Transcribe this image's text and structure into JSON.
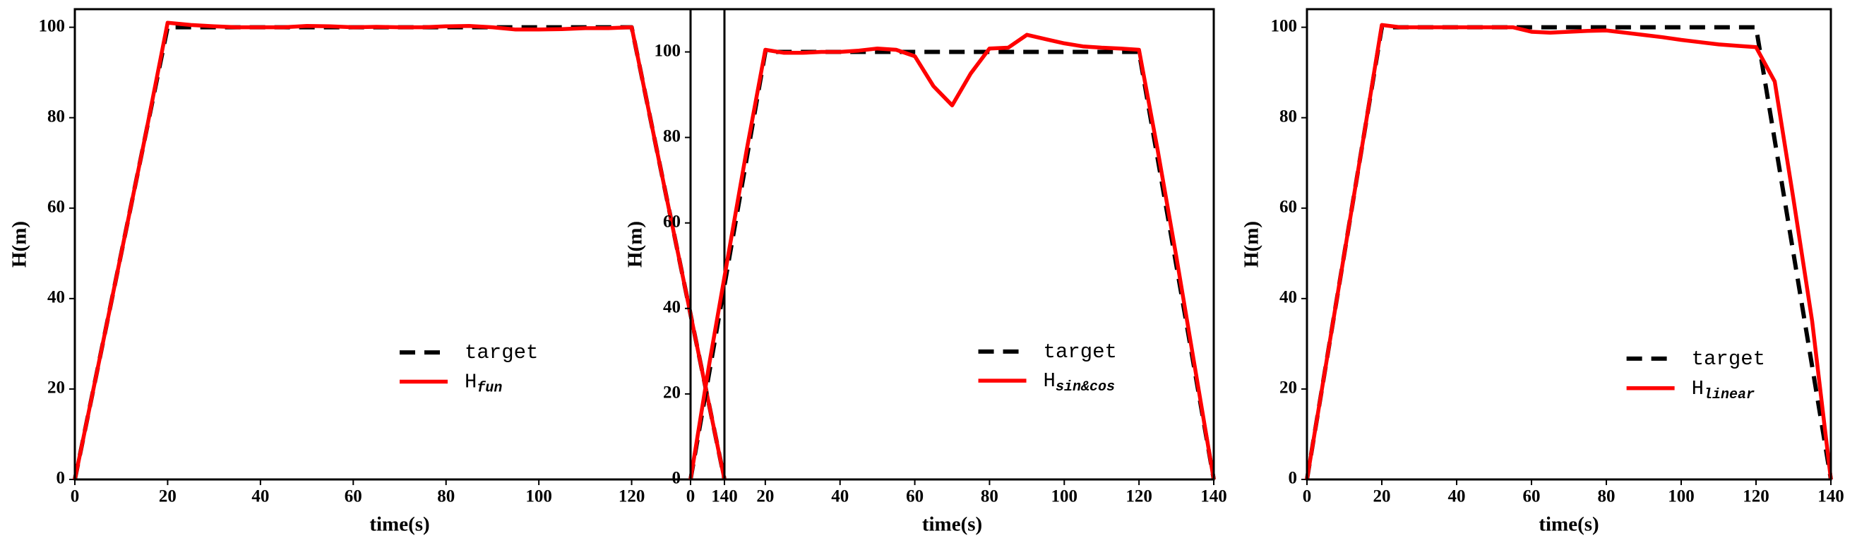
{
  "chart_data": [
    {
      "type": "line",
      "xlabel": "time(s)",
      "ylabel": "H(m)",
      "x": [
        0,
        5,
        10,
        15,
        20,
        25,
        30,
        35,
        40,
        45,
        50,
        55,
        60,
        65,
        70,
        75,
        80,
        85,
        90,
        95,
        100,
        105,
        110,
        115,
        120,
        125,
        130,
        135,
        140
      ],
      "series": [
        {
          "name": "target",
          "color": "#000000",
          "linestyle": "dashed",
          "values": [
            0,
            25,
            50,
            75,
            100,
            100,
            100,
            100,
            100,
            100,
            100,
            100,
            100,
            100,
            100,
            100,
            100,
            100,
            100,
            100,
            100,
            100,
            100,
            100,
            100,
            75,
            50,
            25,
            0
          ]
        },
        {
          "name": "H",
          "name_sub": "fun",
          "color": "#ff0000",
          "linestyle": "solid",
          "values": [
            0,
            25,
            50,
            75,
            101,
            100.5,
            100.2,
            100,
            100,
            100,
            100.3,
            100.2,
            100,
            100.1,
            100,
            100,
            100.2,
            100.3,
            100,
            99.5,
            99.5,
            99.6,
            99.8,
            99.8,
            100,
            75,
            50,
            25,
            0
          ]
        }
      ],
      "xlim": [
        0,
        140
      ],
      "xticks": [
        0,
        20,
        40,
        60,
        80,
        100,
        120,
        140
      ],
      "ylim": [
        0,
        104
      ],
      "yticks": [
        0,
        20,
        40,
        60,
        80,
        100
      ]
    },
    {
      "type": "line",
      "xlabel": "time(s)",
      "ylabel": "H(m)",
      "x": [
        0,
        5,
        10,
        15,
        20,
        25,
        30,
        35,
        40,
        45,
        50,
        55,
        60,
        65,
        70,
        75,
        80,
        85,
        90,
        95,
        100,
        105,
        110,
        115,
        120,
        125,
        130,
        135,
        140
      ],
      "series": [
        {
          "name": "target",
          "color": "#000000",
          "linestyle": "dashed",
          "values": [
            0,
            25,
            50,
            75,
            100,
            100,
            100,
            100,
            100,
            100,
            100,
            100,
            100,
            100,
            100,
            100,
            100,
            100,
            100,
            100,
            100,
            100,
            100,
            100,
            100,
            75,
            50,
            25,
            0
          ]
        },
        {
          "name": "H",
          "name_sub": "sin&cos",
          "color": "#ff0000",
          "linestyle": "solid",
          "values": [
            0,
            27,
            52,
            77,
            100.5,
            99.8,
            99.8,
            100,
            100,
            100.3,
            100.8,
            100.5,
            99,
            92,
            87.5,
            95,
            100.8,
            101,
            104,
            103,
            102,
            101.3,
            101,
            100.8,
            100.5,
            77,
            52,
            26,
            0
          ]
        }
      ],
      "xlim": [
        0,
        140
      ],
      "xticks": [
        0,
        20,
        40,
        60,
        80,
        100,
        120,
        140
      ],
      "ylim": [
        0,
        110
      ],
      "yticks": [
        0,
        20,
        40,
        60,
        80,
        100
      ]
    },
    {
      "type": "line",
      "xlabel": "time(s)",
      "ylabel": "H(m)",
      "x": [
        0,
        5,
        10,
        15,
        20,
        25,
        30,
        35,
        40,
        45,
        50,
        55,
        60,
        65,
        70,
        75,
        80,
        85,
        90,
        95,
        100,
        105,
        110,
        115,
        120,
        125,
        130,
        135,
        140
      ],
      "series": [
        {
          "name": "target",
          "color": "#000000",
          "linestyle": "dashed",
          "values": [
            0,
            25,
            50,
            75,
            100,
            100,
            100,
            100,
            100,
            100,
            100,
            100,
            100,
            100,
            100,
            100,
            100,
            100,
            100,
            100,
            100,
            100,
            100,
            100,
            100,
            75,
            50,
            25,
            0
          ]
        },
        {
          "name": "H",
          "name_sub": "linear",
          "color": "#ff0000",
          "linestyle": "solid",
          "values": [
            0,
            25,
            50,
            75,
            100.5,
            100,
            100,
            100,
            100,
            100,
            100,
            100,
            99,
            98.8,
            99,
            99.2,
            99.3,
            98.8,
            98.3,
            97.8,
            97.2,
            96.7,
            96.2,
            95.9,
            95.6,
            88,
            62,
            35,
            0
          ]
        }
      ],
      "xlim": [
        0,
        140
      ],
      "xticks": [
        0,
        20,
        40,
        60,
        80,
        100,
        120,
        140
      ],
      "ylim": [
        0,
        104
      ],
      "yticks": [
        0,
        20,
        40,
        60,
        80,
        100
      ]
    }
  ]
}
